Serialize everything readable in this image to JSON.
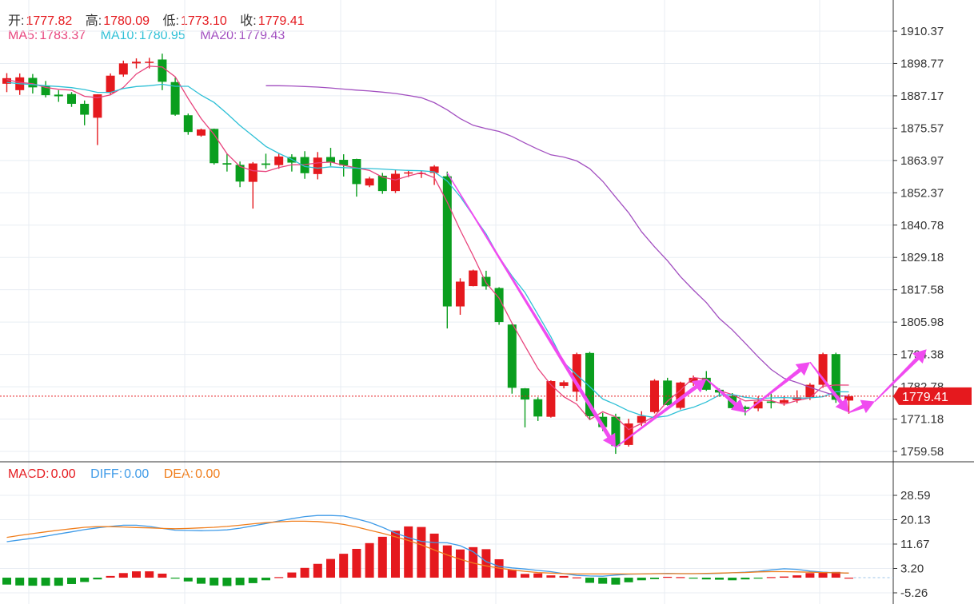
{
  "legend": {
    "open_label": "开:",
    "open_value": "1777.82",
    "high_label": "高:",
    "high_value": "1780.09",
    "low_label": "低:",
    "low_value": "1773.10",
    "close_label": "收:",
    "close_value": "1779.41",
    "ma5_label": "MA5:",
    "ma5_value": "1783.37",
    "ma10_label": "MA10:",
    "ma10_value": "1780.95",
    "ma20_label": "MA20:",
    "ma20_value": "1779.43",
    "macd_label": "MACD:",
    "macd_value": "0.00",
    "diff_label": "DIFF:",
    "diff_value": "0.00",
    "dea_label": "DEA:",
    "dea_value": "0.00"
  },
  "colors": {
    "up": "#e5191e",
    "down": "#0a9e1e",
    "ma5": "#e8437c",
    "ma10": "#2ec0d6",
    "ma20": "#a24fc0",
    "diff": "#3f9be8",
    "dea": "#f07f1e",
    "arrow": "#f04bf0",
    "grid": "#e8edf3",
    "price_line": "#e5191e"
  },
  "current_price_tag": "1779.41",
  "chart_data": [
    {
      "type": "candlestick",
      "ylim": [
        1759.58,
        1915.0
      ],
      "y_ticks": [
        "1910.37",
        "1898.77",
        "1887.17",
        "1875.57",
        "1863.97",
        "1852.37",
        "1840.78",
        "1829.18",
        "1817.58",
        "1805.98",
        "1794.38",
        "1782.78",
        "1771.18",
        "1759.58"
      ],
      "y_tick_values": [
        1910.37,
        1898.77,
        1887.17,
        1875.57,
        1863.97,
        1852.37,
        1840.78,
        1829.18,
        1817.58,
        1805.98,
        1794.38,
        1782.78,
        1771.18,
        1759.58
      ],
      "current_price": 1779.41,
      "candles": [
        [
          1891.5,
          1893.5,
          1888.5,
          1895.3
        ],
        [
          1889.2,
          1893.8,
          1887.5,
          1895.2
        ],
        [
          1893.6,
          1890.2,
          1888.0,
          1895.0
        ],
        [
          1890.9,
          1887.4,
          1886.6,
          1892.5
        ],
        [
          1887.6,
          1887.0,
          1885.0,
          1889.2
        ],
        [
          1887.8,
          1884.3,
          1883.2,
          1888.5
        ],
        [
          1884.3,
          1880.4,
          1876.6,
          1885.5
        ],
        [
          1879.3,
          1887.7,
          1869.5,
          1887.7
        ],
        [
          1888.2,
          1894.4,
          1887.5,
          1895.2
        ],
        [
          1894.8,
          1898.8,
          1894.0,
          1899.8
        ],
        [
          1898.8,
          1899.4,
          1897.0,
          1900.6
        ],
        [
          1899.4,
          1899.4,
          1897.0,
          1900.8
        ],
        [
          1900.2,
          1892.2,
          1889.2,
          1902.3
        ],
        [
          1892.1,
          1880.4,
          1880.0,
          1893.7
        ],
        [
          1880.2,
          1874.2,
          1873.2,
          1880.8
        ],
        [
          1872.9,
          1875.1,
          1872.5,
          1875.4
        ],
        [
          1875.3,
          1863.0,
          1862.5,
          1875.4
        ],
        [
          1863.0,
          1862.5,
          1860.0,
          1866.3
        ],
        [
          1862.4,
          1856.4,
          1854.4,
          1863.6
        ],
        [
          1856.3,
          1862.9,
          1846.7,
          1863.4
        ],
        [
          1862.9,
          1862.4,
          1861.0,
          1866.4
        ],
        [
          1862.3,
          1865.4,
          1861.0,
          1866.5
        ],
        [
          1865.2,
          1863.2,
          1860.0,
          1866.2
        ],
        [
          1865.2,
          1859.4,
          1857.4,
          1867.3
        ],
        [
          1859.1,
          1865.0,
          1857.2,
          1867.0
        ],
        [
          1865.2,
          1863.2,
          1862.0,
          1868.5
        ],
        [
          1864.2,
          1862.2,
          1858.2,
          1866.2
        ],
        [
          1864.5,
          1855.5,
          1851.0,
          1864.6
        ],
        [
          1855.0,
          1857.5,
          1854.4,
          1858.1
        ],
        [
          1858.5,
          1853.0,
          1852.0,
          1859.5
        ],
        [
          1853.0,
          1859.2,
          1852.3,
          1860.7
        ],
        [
          1859.3,
          1859.7,
          1858.0,
          1860.2
        ],
        [
          1859.2,
          1859.5,
          1857.7,
          1860.4
        ],
        [
          1859.5,
          1861.8,
          1855.2,
          1862.3
        ],
        [
          1858.3,
          1811.6,
          1803.7,
          1860.0
        ],
        [
          1811.6,
          1820.5,
          1808.6,
          1821.7
        ],
        [
          1818.9,
          1824.5,
          1818.8,
          1824.8
        ],
        [
          1822.2,
          1818.8,
          1817.6,
          1824.4
        ],
        [
          1818.2,
          1806.0,
          1805.0,
          1818.5
        ],
        [
          1805.1,
          1782.4,
          1780.3,
          1805.3
        ],
        [
          1782.2,
          1778.2,
          1768.2,
          1782.3
        ],
        [
          1778.3,
          1772.1,
          1770.5,
          1779.0
        ],
        [
          1772.0,
          1784.8,
          1771.7,
          1785.1
        ],
        [
          1783.1,
          1784.4,
          1782.2,
          1785.0
        ],
        [
          1781.0,
          1794.5,
          1777.6,
          1795.0
        ],
        [
          1794.9,
          1772.2,
          1770.8,
          1795.3
        ],
        [
          1772.0,
          1768.3,
          1766.9,
          1773.4
        ],
        [
          1772.0,
          1761.5,
          1758.7,
          1773.1
        ],
        [
          1761.9,
          1769.6,
          1761.3,
          1771.3
        ],
        [
          1769.8,
          1772.3,
          1768.7,
          1774.0
        ],
        [
          1773.7,
          1785.0,
          1773.2,
          1785.5
        ],
        [
          1785.0,
          1776.2,
          1776.0,
          1786.0
        ],
        [
          1775.2,
          1784.3,
          1774.6,
          1784.6
        ],
        [
          1784.3,
          1786.0,
          1783.1,
          1786.8
        ],
        [
          1786.0,
          1781.7,
          1781.3,
          1788.4
        ],
        [
          1781.7,
          1780.7,
          1779.2,
          1782.2
        ],
        [
          1779.5,
          1775.1,
          1774.9,
          1780.5
        ],
        [
          1775.5,
          1774.8,
          1772.5,
          1776.0
        ],
        [
          1775.0,
          1777.5,
          1774.0,
          1779.3
        ],
        [
          1777.5,
          1777.0,
          1775.0,
          1780.5
        ],
        [
          1777.0,
          1778.0,
          1776.0,
          1779.4
        ],
        [
          1778.0,
          1779.0,
          1777.0,
          1781.5
        ],
        [
          1779.0,
          1783.5,
          1778.0,
          1784.1
        ],
        [
          1783.5,
          1794.5,
          1782.4,
          1795.0
        ],
        [
          1794.5,
          1778.1,
          1777.0,
          1795.0
        ],
        [
          1777.82,
          1779.41,
          1773.1,
          1780.09
        ]
      ],
      "ma_series": [
        {
          "name": "MA5",
          "values": [
            1893.0,
            1892.0,
            1891.5,
            1890.2,
            1889.5,
            1889.2,
            1887.0,
            1886.5,
            1887.5,
            1890.2,
            1895.0,
            1897.8,
            1897.5,
            1894.0,
            1886.2,
            1879.0,
            1873.3,
            1866.4,
            1861.8,
            1860.3,
            1860.0,
            1861.4,
            1862.4,
            1862.5,
            1863.1,
            1863.4,
            1862.2,
            1861.3,
            1860.4,
            1858.0,
            1857.0,
            1858.4,
            1859.6,
            1857.8,
            1849.0,
            1839.0,
            1829.8,
            1820.0,
            1814.6,
            1805.6,
            1797.4,
            1789.3,
            1783.5,
            1779.2,
            1776.5,
            1771.0,
            1773.8,
            1772.0,
            1767.4,
            1769.6,
            1772.2,
            1777.6,
            1781.5,
            1786.1,
            1785.5,
            1781.4,
            1780.0,
            1777.7,
            1778.0,
            1777.8,
            1776.5,
            1777.8,
            1778.8,
            1783.0,
            1783.4,
            1783.37
          ]
        },
        {
          "name": "MA10",
          "values": [
            1892.0,
            1891.5,
            1891.2,
            1890.8,
            1890.5,
            1890.1,
            1889.4,
            1888.4,
            1888.4,
            1889.8,
            1890.5,
            1890.8,
            1891.3,
            1890.6,
            1890.6,
            1887.4,
            1884.8,
            1880.8,
            1876.5,
            1872.8,
            1869.0,
            1866.5,
            1864.4,
            1861.8,
            1861.2,
            1861.7,
            1861.4,
            1861.2,
            1861.1,
            1860.9,
            1860.6,
            1860.4,
            1860.3,
            1859.9,
            1856.6,
            1851.0,
            1844.2,
            1837.6,
            1829.3,
            1822.5,
            1816.6,
            1808.7,
            1800.7,
            1791.5,
            1787.0,
            1782.8,
            1778.4,
            1776.4,
            1774.1,
            1772.5,
            1771.7,
            1772.3,
            1774.2,
            1775.4,
            1777.3,
            1779.8,
            1780.0,
            1779.0,
            1778.5,
            1778.8,
            1778.9,
            1778.7,
            1778.8,
            1779.2,
            1781.0,
            1780.95
          ]
        },
        {
          "name": "MA20",
          "values": [
            1890.8,
            1890.8,
            1890.7,
            1890.5,
            1890.3,
            1890.0,
            1889.6,
            1889.2,
            1888.9,
            1888.5,
            1888.0,
            1887.3,
            1886.5,
            1884.7,
            1882.1,
            1879.0,
            1876.6,
            1875.4,
            1874.4,
            1872.6,
            1870.2,
            1868.0,
            1866.0,
            1865.2,
            1863.8,
            1861.0,
            1856.5,
            1850.8,
            1845.2,
            1838.4,
            1833.0,
            1828.0,
            1822.3,
            1817.5,
            1813.0,
            1807.3,
            1803.2,
            1798.4,
            1793.5,
            1789.0,
            1785.8,
            1784.3,
            1782.6,
            1781.0,
            1779.5,
            1779.43
          ]
        }
      ],
      "arrows": [
        {
          "from": [
            34,
            1859.5
          ],
          "to": [
            47,
            1761.0
          ]
        },
        {
          "from": [
            47,
            1761.0
          ],
          "to": [
            54,
            1785.5
          ]
        },
        {
          "from": [
            54,
            1785.5
          ],
          "to": [
            57,
            1773.5
          ]
        },
        {
          "from": [
            57,
            1773.5
          ],
          "to": [
            62,
            1791.6
          ]
        },
        {
          "from": [
            62,
            1791.6
          ],
          "to": [
            65,
            1773.5
          ]
        },
        {
          "from": [
            65,
            1773.5
          ],
          "to": [
            67,
            1777.5
          ]
        },
        {
          "from": [
            67,
            1777.5
          ],
          "to": [
            71,
            1796.2
          ]
        }
      ]
    },
    {
      "type": "bar",
      "title": "MACD",
      "ylim": [
        -5.26,
        28.59
      ],
      "y_ticks": [
        "28.59",
        "20.13",
        "11.67",
        "3.20",
        "-5.26"
      ],
      "y_tick_values": [
        28.59,
        20.13,
        11.67,
        3.2,
        -5.26
      ],
      "macd": [
        -2.4,
        -2.7,
        -2.8,
        -2.8,
        -2.8,
        -2.2,
        -1.5,
        -0.6,
        0.6,
        1.6,
        2.2,
        2.2,
        1.4,
        -0.1,
        -1.3,
        -2.1,
        -2.7,
        -2.9,
        -2.6,
        -1.9,
        -0.9,
        0.2,
        1.8,
        3.4,
        4.8,
        6.5,
        8.3,
        10.0,
        12.0,
        14.2,
        16.3,
        17.8,
        17.6,
        15.3,
        11.2,
        9.8,
        10.6,
        9.9,
        6.4,
        2.8,
        1.3,
        1.5,
        0.8,
        0.6,
        0.1,
        -1.8,
        -2.1,
        -2.4,
        -1.6,
        -0.9,
        -0.5,
        0.3,
        0.2,
        -0.3,
        -0.6,
        -0.7,
        -0.9,
        -0.6,
        -0.2,
        0.2,
        0.4,
        0.8,
        1.6,
        2.0,
        2.0,
        0.0
      ],
      "series": [
        {
          "name": "DIFF",
          "values": [
            12.5,
            13.1,
            13.7,
            14.4,
            15.2,
            15.9,
            16.7,
            17.3,
            17.8,
            18.2,
            18.2,
            17.8,
            17.1,
            16.5,
            16.4,
            16.3,
            16.4,
            16.6,
            17.2,
            18.0,
            18.8,
            19.7,
            20.5,
            21.2,
            21.6,
            21.6,
            21.4,
            20.4,
            19.2,
            17.5,
            15.5,
            13.9,
            12.6,
            12.2,
            12.1,
            11.1,
            9.0,
            5.6,
            3.9,
            3.4,
            3.0,
            2.5,
            2.1,
            1.4,
            0.8,
            0.6,
            0.5,
            0.9,
            1.2,
            1.3,
            1.4,
            1.5,
            1.4,
            1.4,
            1.4,
            1.5,
            1.7,
            1.9,
            2.2,
            2.7,
            3.1,
            2.9,
            2.3,
            1.9,
            1.7,
            1.6
          ]
        },
        {
          "name": "DEA",
          "values": [
            14.0,
            14.7,
            15.3,
            15.9,
            16.5,
            17.0,
            17.5,
            17.7,
            17.7,
            17.6,
            17.4,
            17.3,
            17.1,
            17.0,
            17.1,
            17.3,
            17.5,
            17.8,
            18.2,
            18.7,
            19.1,
            19.4,
            19.6,
            19.6,
            19.5,
            19.1,
            18.5,
            17.6,
            16.5,
            15.4,
            14.2,
            12.9,
            11.4,
            9.6,
            7.9,
            6.4,
            5.1,
            4.1,
            3.3,
            2.7,
            2.2,
            1.8,
            1.6,
            1.4,
            1.3,
            1.3,
            1.3,
            1.3,
            1.3,
            1.3,
            1.4,
            1.4,
            1.4,
            1.4,
            1.5,
            1.6,
            1.7,
            1.8,
            2.0,
            2.1,
            2.1,
            2.0,
            1.9,
            1.8,
            1.7,
            1.6
          ]
        }
      ]
    }
  ]
}
